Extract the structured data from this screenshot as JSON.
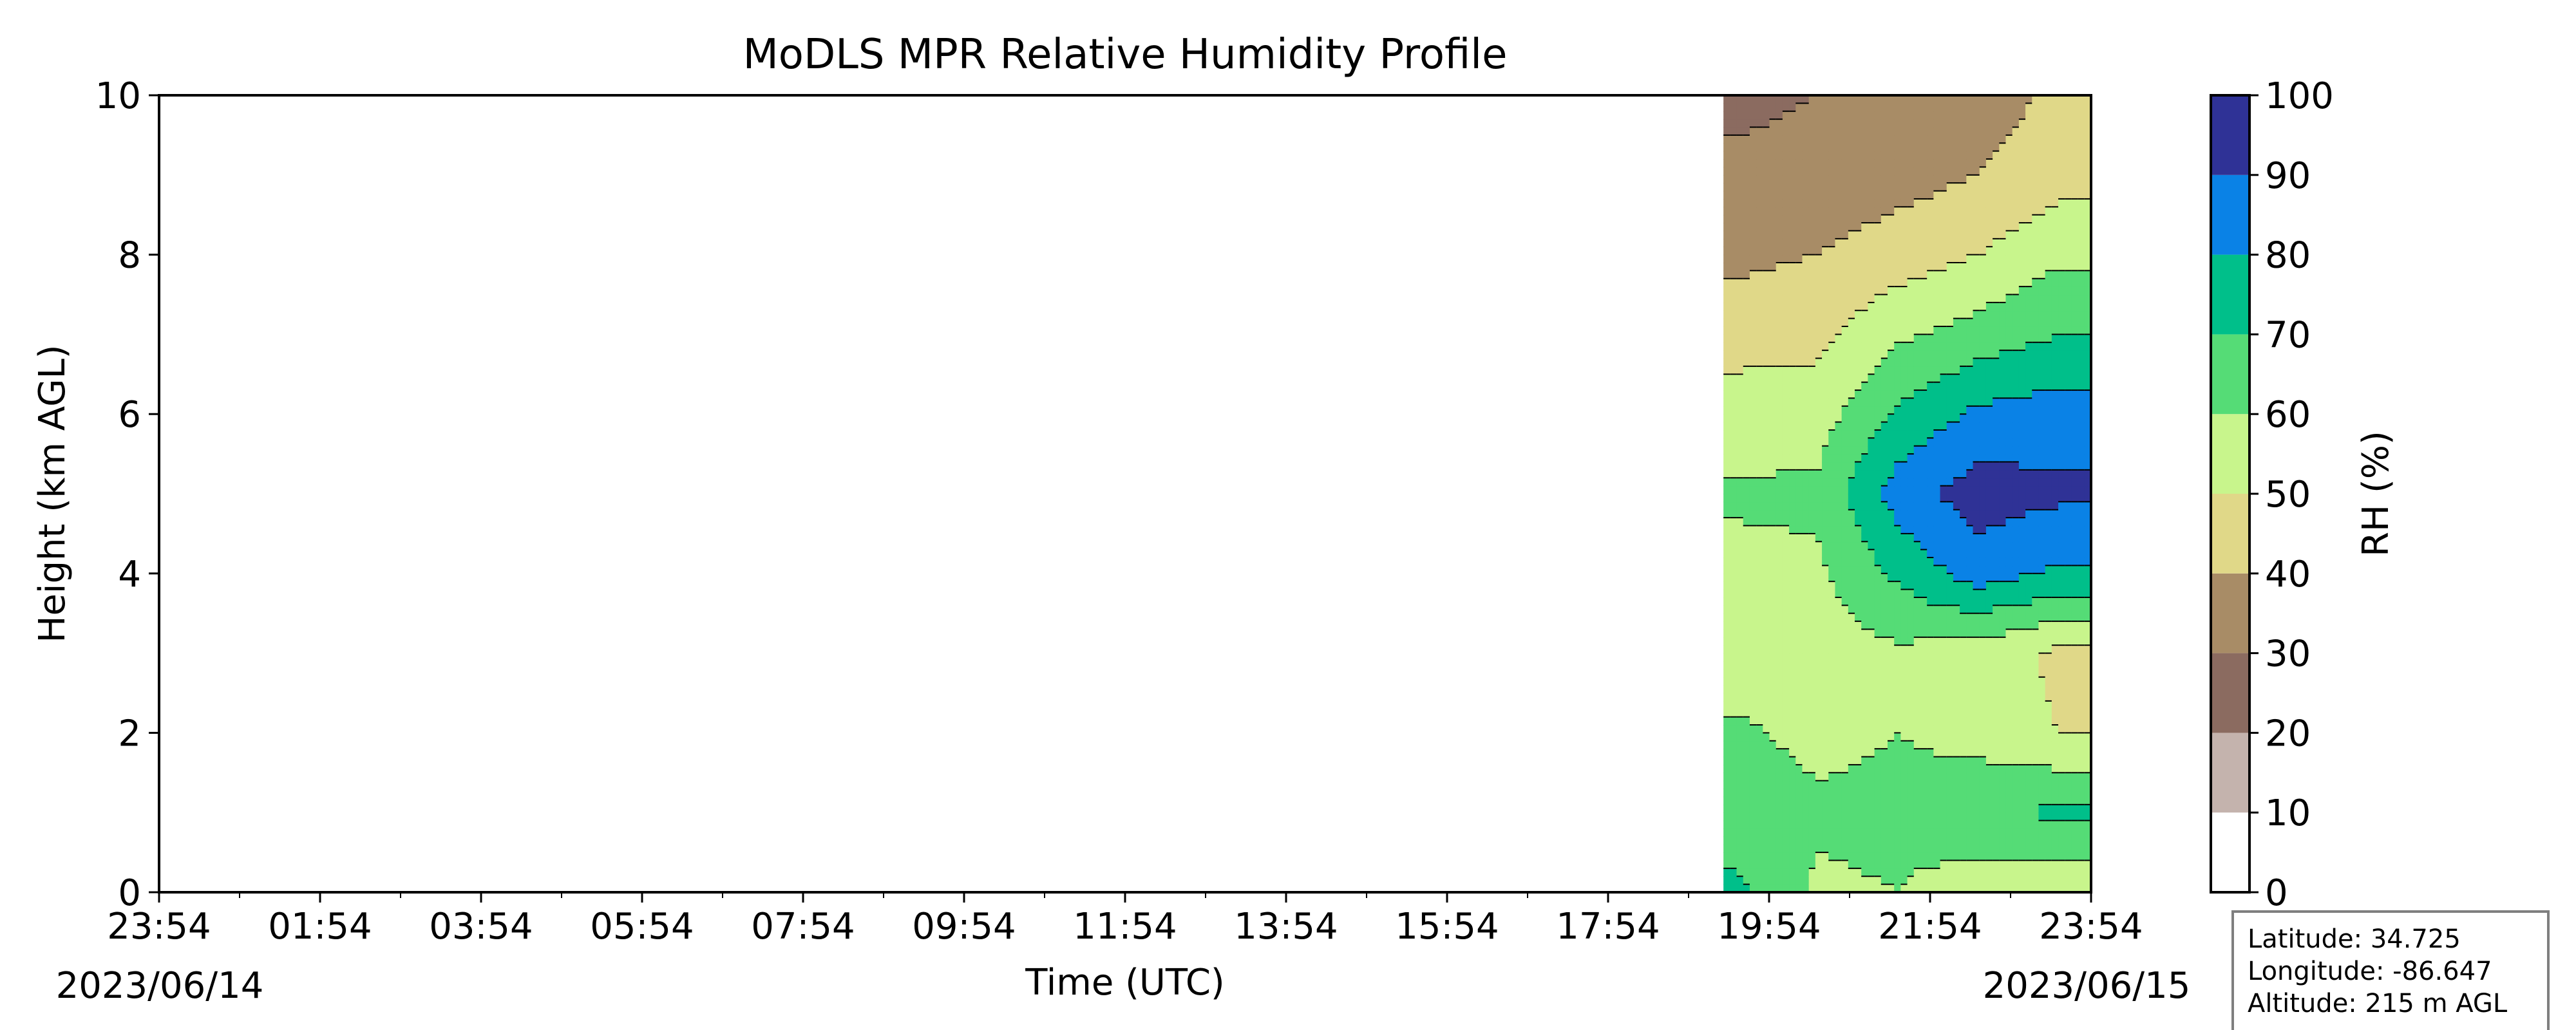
{
  "chart_data": {
    "type": "heatmap",
    "title": "MoDLS MPR Relative Humidity Profile",
    "xlabel": "Time (UTC)",
    "ylabel": "Height (km AGL)",
    "x_tick_labels": [
      "23:54",
      "01:54",
      "03:54",
      "05:54",
      "07:54",
      "09:54",
      "11:54",
      "13:54",
      "15:54",
      "17:54",
      "19:54",
      "21:54",
      "23:54"
    ],
    "x_start_date": "2023/06/14",
    "x_end_date": "2023/06/15",
    "ylim": [
      0,
      10
    ],
    "y_ticks": [
      0,
      2,
      4,
      6,
      8,
      10
    ],
    "data_start_time": "19:20",
    "colorbar": {
      "label": "RH (%)",
      "ticks": [
        0,
        10,
        20,
        30,
        40,
        50,
        60,
        70,
        80,
        90,
        100
      ],
      "colors": [
        "#ffffff",
        "#c4b3ad",
        "#8b6b60",
        "#a88c66",
        "#e0d888",
        "#c8f58c",
        "#55dc76",
        "#00bf8a",
        "#0a82e6",
        "#2f3296"
      ]
    },
    "rh_profile_by_hour": {
      "times": [
        "19:30",
        "20:30",
        "21:30",
        "22:30",
        "23:30"
      ],
      "heights_km": [
        0,
        1,
        2,
        3,
        4,
        5,
        6,
        7,
        8,
        9,
        10
      ],
      "rh_percent": [
        [
          72,
          65,
          62,
          52,
          58,
          61,
          56,
          45,
          38,
          32,
          28
        ],
        [
          58,
          62,
          57,
          55,
          58,
          62,
          55,
          47,
          40,
          33,
          30
        ],
        [
          60,
          63,
          60,
          58,
          72,
          85,
          72,
          58,
          45,
          36,
          32
        ],
        [
          54,
          68,
          56,
          55,
          85,
          95,
          82,
          64,
          50,
          40,
          35
        ],
        [
          52,
          72,
          50,
          48,
          78,
          92,
          85,
          70,
          58,
          46,
          42
        ]
      ]
    }
  },
  "info_box": {
    "latitude": "Latitude: 34.725",
    "longitude": "Longitude: -86.647",
    "altitude": "Altitude: 215 m AGL"
  }
}
